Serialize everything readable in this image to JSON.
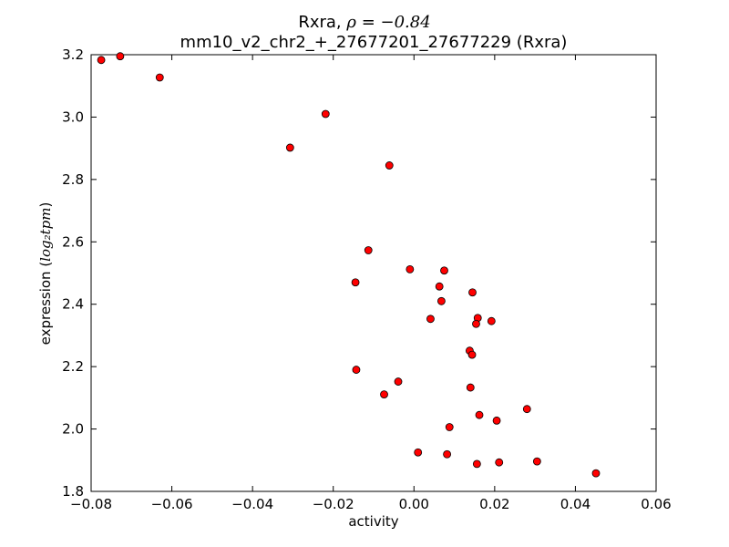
{
  "chart_data": {
    "type": "scatter",
    "title_gene": "Rxra",
    "title_rho_symbol": "ρ",
    "title_rho_value": "−0.84",
    "subtitle": "mm10_v2_chr2_+_27677201_27677229 (Rxra)",
    "xlabel": "activity",
    "ylabel_prefix": "expression (",
    "ylabel_math": "log₂tpm",
    "ylabel_suffix": ")",
    "xlim": [
      -0.08,
      0.06
    ],
    "ylim": [
      1.8,
      3.2
    ],
    "xticks": [
      -0.08,
      -0.06,
      -0.04,
      -0.02,
      0.0,
      0.02,
      0.04,
      0.06
    ],
    "xtick_labels": [
      "−0.08",
      "−0.06",
      "−0.04",
      "−0.02",
      "0.00",
      "0.02",
      "0.04",
      "0.06"
    ],
    "yticks": [
      1.8,
      2.0,
      2.2,
      2.4,
      2.6,
      2.8,
      3.0,
      3.2
    ],
    "ytick_labels": [
      "1.8",
      "2.0",
      "2.2",
      "2.4",
      "2.6",
      "2.8",
      "3.0",
      "3.2"
    ],
    "marker_color": "#ff0000",
    "marker_edge_color": "#000000",
    "grid": false,
    "points": [
      {
        "x": -0.0775,
        "y": 3.183
      },
      {
        "x": -0.0728,
        "y": 3.195
      },
      {
        "x": -0.063,
        "y": 3.127
      },
      {
        "x": -0.0219,
        "y": 3.01
      },
      {
        "x": -0.0307,
        "y": 2.902
      },
      {
        "x": -0.0061,
        "y": 2.845
      },
      {
        "x": -0.0113,
        "y": 2.573
      },
      {
        "x": -0.0145,
        "y": 2.47
      },
      {
        "x": -0.001,
        "y": 2.512
      },
      {
        "x": 0.0075,
        "y": 2.508
      },
      {
        "x": 0.0063,
        "y": 2.457
      },
      {
        "x": 0.0068,
        "y": 2.41
      },
      {
        "x": 0.0145,
        "y": 2.438
      },
      {
        "x": 0.0041,
        "y": 2.353
      },
      {
        "x": 0.0158,
        "y": 2.356
      },
      {
        "x": 0.0154,
        "y": 2.337
      },
      {
        "x": 0.0192,
        "y": 2.346
      },
      {
        "x": 0.0138,
        "y": 2.251
      },
      {
        "x": 0.0144,
        "y": 2.238
      },
      {
        "x": -0.0143,
        "y": 2.19
      },
      {
        "x": -0.0039,
        "y": 2.152
      },
      {
        "x": -0.0074,
        "y": 2.111
      },
      {
        "x": 0.014,
        "y": 2.133
      },
      {
        "x": 0.028,
        "y": 2.064
      },
      {
        "x": 0.0162,
        "y": 2.045
      },
      {
        "x": 0.0205,
        "y": 2.027
      },
      {
        "x": 0.0088,
        "y": 2.006
      },
      {
        "x": 0.001,
        "y": 1.925
      },
      {
        "x": 0.0082,
        "y": 1.919
      },
      {
        "x": 0.0156,
        "y": 1.888
      },
      {
        "x": 0.0211,
        "y": 1.893
      },
      {
        "x": 0.0305,
        "y": 1.896
      },
      {
        "x": 0.0451,
        "y": 1.858
      }
    ]
  }
}
